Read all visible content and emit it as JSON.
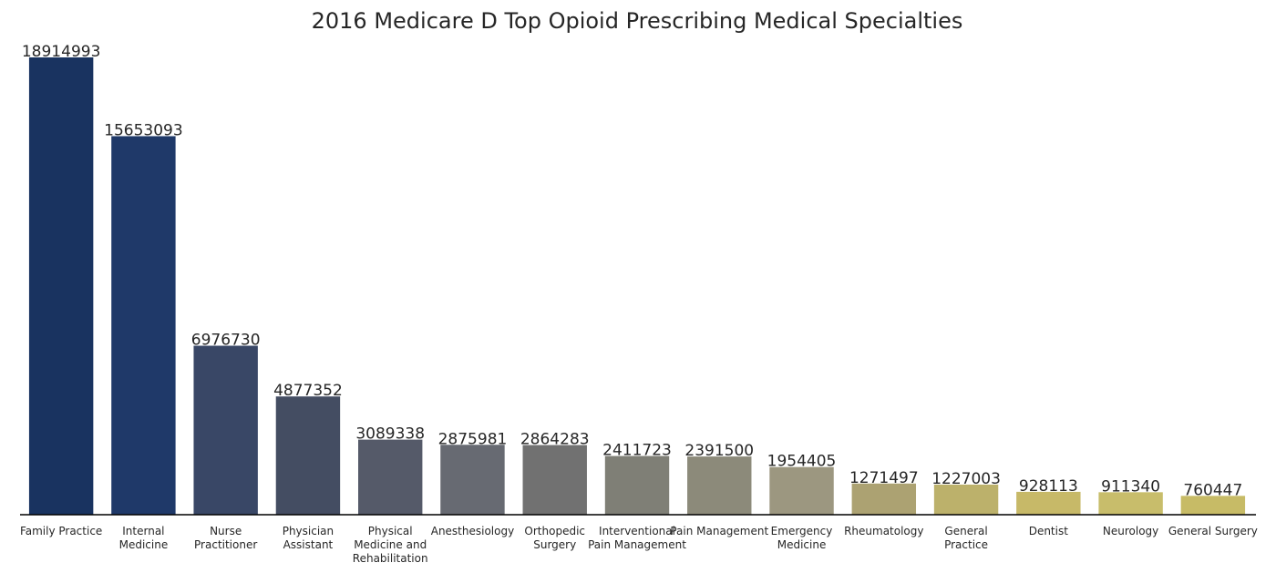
{
  "chart_data": {
    "type": "bar",
    "title": "2016 Medicare D Top Opioid Prescribing Medical Specialties",
    "xlabel": "",
    "ylabel": "",
    "ylim": [
      0,
      18914993
    ],
    "grid": false,
    "legend": "none",
    "categories": [
      "Family Practice",
      "Internal Medicine",
      "Nurse Practitioner",
      "Physician Assistant",
      "Physical Medicine and Rehabilitation",
      "Anesthesiology",
      "Orthopedic Surgery",
      "Interventional Pain Management",
      "Pain Management",
      "Emergency Medicine",
      "Rheumatology",
      "General Practice",
      "Dentist",
      "Neurology",
      "General Surgery"
    ],
    "tick_label_lines": [
      [
        "Family Practice"
      ],
      [
        "Internal",
        "Medicine"
      ],
      [
        "Nurse",
        "Practitioner"
      ],
      [
        "Physician",
        "Assistant"
      ],
      [
        "Physical",
        "Medicine and",
        "Rehabilitation"
      ],
      [
        "Anesthesiology"
      ],
      [
        "Orthopedic",
        "Surgery"
      ],
      [
        "Interventional",
        "Pain Management"
      ],
      [
        "Pain Management"
      ],
      [
        "Emergency",
        "Medicine"
      ],
      [
        "Rheumatology"
      ],
      [
        "General",
        "Practice"
      ],
      [
        "Dentist"
      ],
      [
        "Neurology"
      ],
      [
        "General Surgery"
      ]
    ],
    "values": [
      18914993,
      15653093,
      6976730,
      4877352,
      3089338,
      2875981,
      2864283,
      2411723,
      2391500,
      1954405,
      1271497,
      1227003,
      928113,
      911340,
      760447
    ],
    "data_labels": [
      "18914993",
      "15653093",
      "6976730",
      "4877352",
      "3089338",
      "2875981",
      "2864283",
      "2411723",
      "2391500",
      "1954405",
      "1271497",
      "1227003",
      "928113",
      "911340",
      "760447"
    ],
    "colors": [
      "#193360",
      "#1f3969",
      "#394766",
      "#444d62",
      "#555a69",
      "#676a72",
      "#717171",
      "#7f7f76",
      "#8c8a7a",
      "#9c9780",
      "#aca272",
      "#bcb16b",
      "#c7b968",
      "#c8bd6b",
      "#c7bb66"
    ],
    "axis_color": "#000000"
  }
}
